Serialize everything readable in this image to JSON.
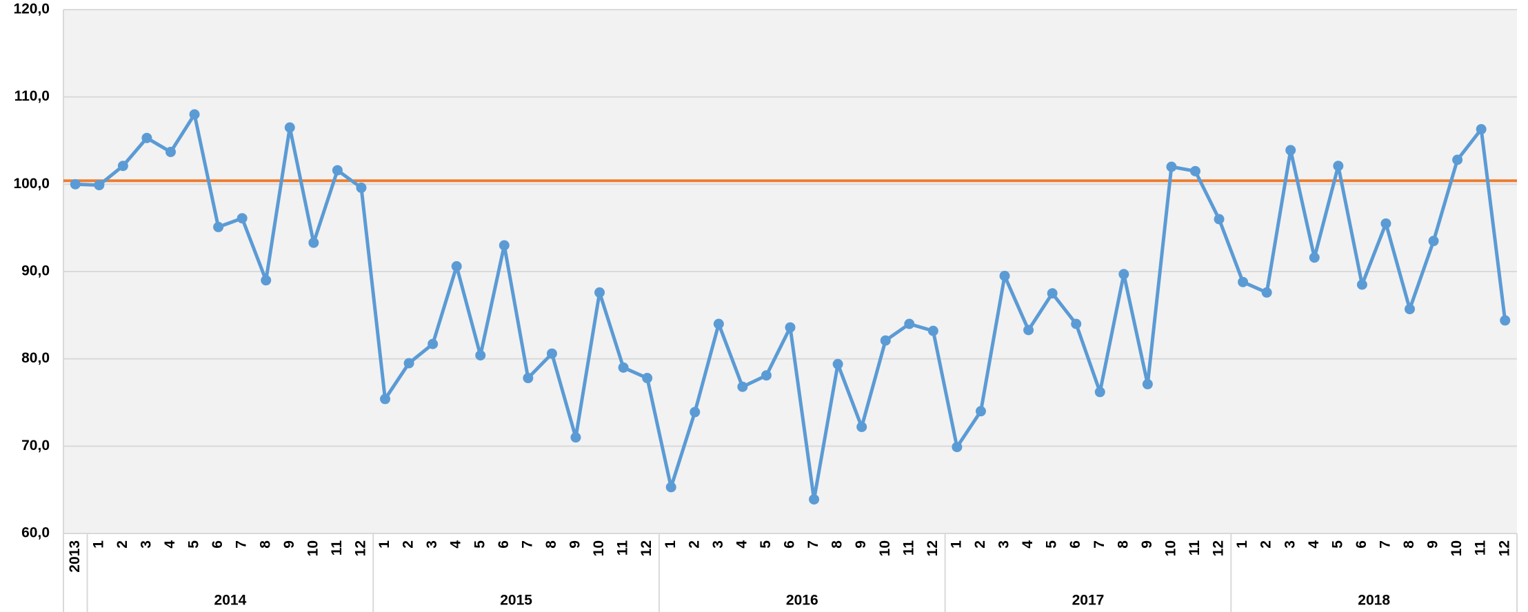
{
  "chart_data": {
    "type": "line",
    "category_groups": [
      {
        "label": null,
        "categories": [
          "2013"
        ]
      },
      {
        "label": "2014",
        "categories": [
          "1",
          "2",
          "3",
          "4",
          "5",
          "6",
          "7",
          "8",
          "9",
          "10",
          "11",
          "12"
        ]
      },
      {
        "label": "2015",
        "categories": [
          "1",
          "2",
          "3",
          "4",
          "5",
          "6",
          "7",
          "8",
          "9",
          "10",
          "11",
          "12"
        ]
      },
      {
        "label": "2016",
        "categories": [
          "1",
          "2",
          "3",
          "4",
          "5",
          "6",
          "7",
          "8",
          "9",
          "10",
          "11",
          "12"
        ]
      },
      {
        "label": "2017",
        "categories": [
          "1",
          "2",
          "3",
          "4",
          "5",
          "6",
          "7",
          "8",
          "9",
          "10",
          "11",
          "12"
        ]
      },
      {
        "label": "2018",
        "categories": [
          "1",
          "2",
          "3",
          "4",
          "5",
          "6",
          "7",
          "8",
          "9",
          "10",
          "11",
          "12"
        ]
      }
    ],
    "series": [
      {
        "color": "#5b9bd5",
        "values": [
          100.0,
          99.9,
          102.1,
          105.3,
          103.7,
          108.0,
          95.1,
          96.1,
          89.0,
          106.5,
          93.3,
          101.6,
          99.6,
          75.4,
          79.5,
          81.7,
          90.6,
          80.4,
          93.0,
          77.8,
          80.6,
          71.0,
          87.6,
          79.0,
          77.8,
          65.3,
          73.9,
          84.0,
          76.8,
          78.1,
          83.6,
          63.9,
          79.4,
          72.2,
          82.1,
          84.0,
          83.2,
          69.9,
          74.0,
          89.5,
          83.3,
          87.5,
          84.0,
          76.2,
          89.7,
          77.1,
          102.0,
          101.5,
          96.0,
          88.8,
          87.6,
          103.9,
          91.6,
          102.1,
          88.5,
          95.5,
          85.7,
          93.5,
          102.8,
          106.3,
          84.4
        ]
      }
    ],
    "reference_line": {
      "value": 100.4,
      "color": "#ed7d31"
    },
    "ylim": [
      60,
      120
    ],
    "yticks": [
      {
        "value": 60,
        "label": "60,0"
      },
      {
        "value": 70,
        "label": "70,0"
      },
      {
        "value": 80,
        "label": "80,0"
      },
      {
        "value": 90,
        "label": "90,0"
      },
      {
        "value": 100,
        "label": "100,0"
      },
      {
        "value": 110,
        "label": "110,0"
      },
      {
        "value": 120,
        "label": "120,0"
      }
    ],
    "grid": true
  }
}
